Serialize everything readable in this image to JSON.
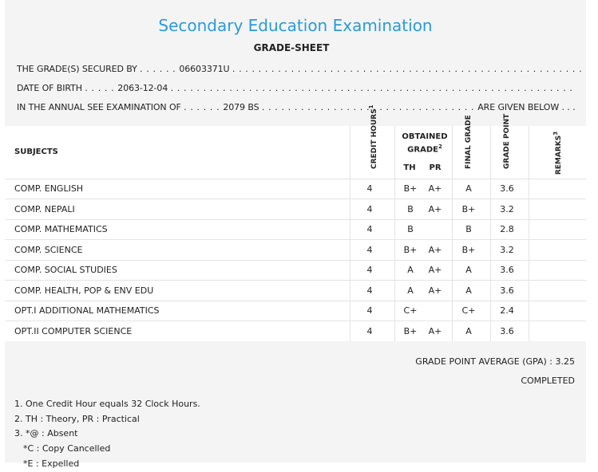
{
  "exam_title": "Secondary Education Examination",
  "sheet_heading": "GRADE-SHEET",
  "info": {
    "secured_by_label": "THE GRADE(S) SECURED BY",
    "secured_by_value": "06603371U",
    "dob_label": "DATE OF BIRTH",
    "dob_value": "2063-12-04",
    "exam_label": "IN THE ANNUAL SEE EXAMINATION OF",
    "exam_value": "2079 BS",
    "exam_suffix": "ARE GIVEN BELOW . . ."
  },
  "table": {
    "headers": {
      "subjects": "SUBJECTS",
      "credit_hours": "CREDIT HOURS",
      "credit_sup": "1",
      "obtained_grade": "OBTAINED GRADE",
      "obtained_sup": "2",
      "th": "TH",
      "pr": "PR",
      "final_grade": "FINAL GRADE",
      "grade_point": "GRADE POINT",
      "remarks": "REMARKS",
      "remarks_sup": "3"
    },
    "rows": [
      {
        "subject": "COMP. ENGLISH",
        "credit": "4",
        "th": "B+",
        "pr": "A+",
        "final": "A",
        "gp": "3.6"
      },
      {
        "subject": "COMP. NEPALI",
        "credit": "4",
        "th": "B",
        "pr": "A+",
        "final": "B+",
        "gp": "3.2"
      },
      {
        "subject": "COMP. MATHEMATICS",
        "credit": "4",
        "th": "B",
        "pr": "",
        "final": "B",
        "gp": "2.8"
      },
      {
        "subject": "COMP. SCIENCE",
        "credit": "4",
        "th": "B+",
        "pr": "A+",
        "final": "B+",
        "gp": "3.2"
      },
      {
        "subject": "COMP. SOCIAL STUDIES",
        "credit": "4",
        "th": "A",
        "pr": "A+",
        "final": "A",
        "gp": "3.6"
      },
      {
        "subject": "COMP. HEALTH, POP & ENV EDU",
        "credit": "4",
        "th": "A",
        "pr": "A+",
        "final": "A",
        "gp": "3.6"
      },
      {
        "subject": "OPT.I ADDITIONAL MATHEMATICS",
        "credit": "4",
        "th": "C+",
        "pr": "",
        "final": "C+",
        "gp": "2.4"
      },
      {
        "subject": "OPT.II COMPUTER SCIENCE",
        "credit": "4",
        "th": "B+",
        "pr": "A+",
        "final": "A",
        "gp": "3.6"
      }
    ]
  },
  "gpa_text": "GRADE POINT AVERAGE (GPA) : 3.25",
  "status_text": "COMPLETED",
  "notes": [
    "1. One Credit Hour equals 32 Clock Hours.",
    "2. TH : Theory, PR : Practical",
    "3. *@ : Absent",
    "*C : Copy Cancelled",
    "*E : Expelled"
  ],
  "colors": {
    "title": "#2a9bd8",
    "sheet_background": "#f4f4f4"
  }
}
